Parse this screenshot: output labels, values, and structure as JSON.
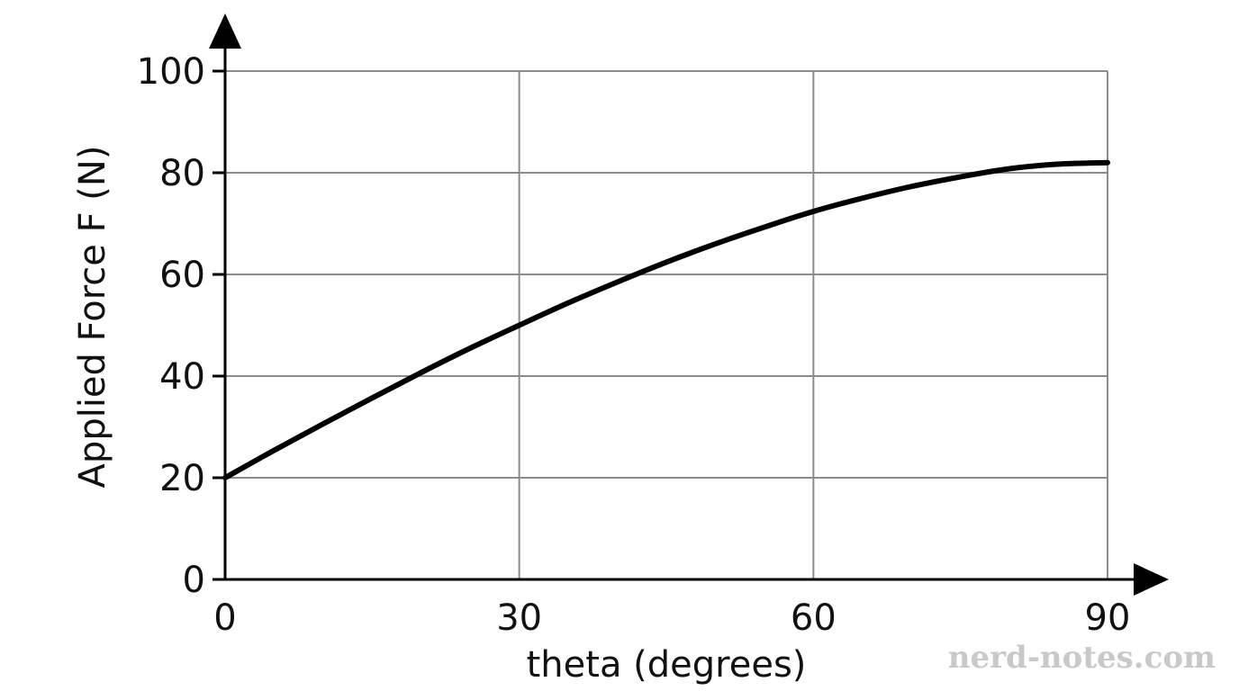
{
  "chart_data": {
    "type": "line",
    "title": "",
    "xlabel": "theta (degrees)",
    "ylabel": "Applied Force F (N)",
    "xlim": [
      0,
      90
    ],
    "ylim": [
      0,
      100
    ],
    "x_ticks": [
      0,
      30,
      60,
      90
    ],
    "y_ticks": [
      0,
      20,
      40,
      60,
      80,
      100
    ],
    "grid": true,
    "series": [
      {
        "x": [
          0,
          5,
          10,
          15,
          20,
          25,
          30,
          35,
          40,
          45,
          50,
          55,
          60,
          65,
          70,
          75,
          80,
          85,
          90
        ],
        "y": [
          20,
          25.4,
          30.6,
          35.7,
          40.7,
          45.5,
          50.0,
          54.4,
          58.5,
          62.4,
          66.0,
          69.3,
          72.4,
          75.0,
          77.3,
          79.2,
          80.8,
          81.7,
          82.0
        ],
        "color": "#000000"
      }
    ]
  },
  "watermark": {
    "text": "nerd-notes.com"
  }
}
